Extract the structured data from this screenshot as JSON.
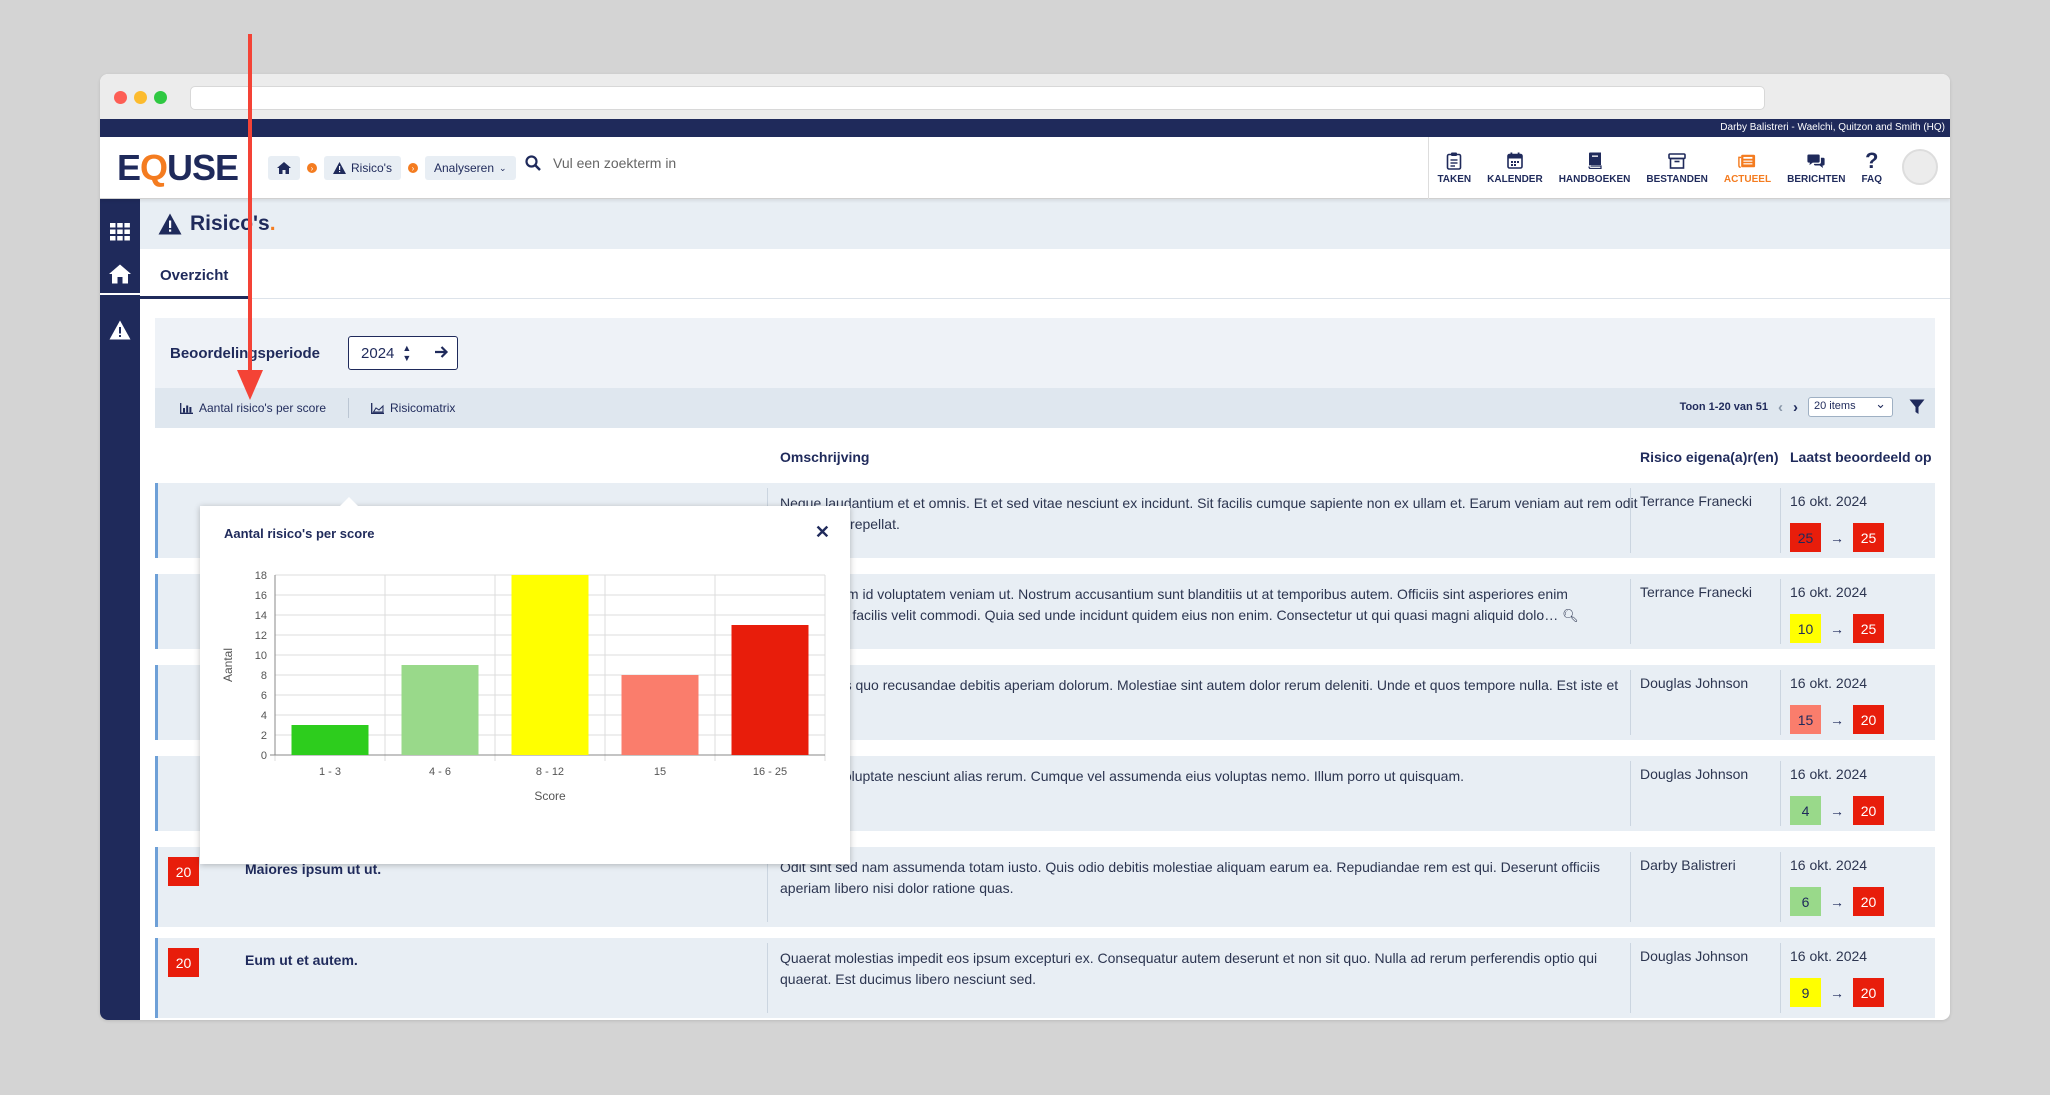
{
  "topstrip": {
    "org": "Darby Balistreri - Waelchi, Quitzon and Smith (HQ)"
  },
  "logo": {
    "text_a": "E",
    "text_q": "Q",
    "text_b": "USE"
  },
  "breadcrumb": {
    "risks": "Risico's",
    "analyse": "Analyseren"
  },
  "search": {
    "placeholder": "Vul een zoekterm in"
  },
  "nav": [
    {
      "label": "TAKEN",
      "icon": "clipboard-icon"
    },
    {
      "label": "KALENDER",
      "icon": "calendar-icon"
    },
    {
      "label": "HANDBOEKEN",
      "icon": "book-icon"
    },
    {
      "label": "BESTANDEN",
      "icon": "archive-icon"
    },
    {
      "label": "ACTUEEL",
      "icon": "news-icon"
    },
    {
      "label": "BERICHTEN",
      "icon": "messages-icon"
    },
    {
      "label": "FAQ",
      "icon": "question-icon"
    }
  ],
  "page": {
    "title": "Risico's",
    "title_dot": ".",
    "tab": "Overzicht"
  },
  "filter": {
    "label": "Beoordelingsperiode",
    "year": "2024"
  },
  "toolbar": {
    "chart_btn": "Aantal risico's per score",
    "matrix_btn": "Risicomatrix",
    "paging": "Toon 1-20 van 51",
    "per_page": "20 items"
  },
  "columns": {
    "description": "Omschrijving",
    "owner": "Risico eigena(a)r(en)",
    "last": "Laatst beoordeeld op"
  },
  "rows": [
    {
      "score": "",
      "title": "",
      "desc": "Neque laudantium et et omnis. Et et sed vitae nesciunt ex incidunt. Sit facilis cumque sapiente non ex ullam et. Earum veniam aut rem odit ad adipisci repellat.",
      "owner": "Terrance Franecki",
      "date": "16 okt. 2024",
      "from": "25",
      "from_color": "#e81d0b",
      "to": "25"
    },
    {
      "score": "",
      "title": "",
      "desc": "Sint nostrum id voluptatem veniam ut. Nostrum accusantium sunt blanditiis ut at temporibus autem. Officiis sint asperiores enim voluptatem facilis velit commodi. Quia sed unde incidunt quidem eius non enim. Consectetur ut qui quasi magni aliquid dolo…",
      "owner": "Terrance Franecki",
      "date": "16 okt. 2024",
      "from": "10",
      "from_color": "#ffff00",
      "to": "25"
    },
    {
      "score": "",
      "title": "",
      "desc": "Perferendis quo recusandae debitis aperiam dolorum. Molestiae sint autem dolor rerum deleniti. Unde et quos tempore nulla. Est iste et nostrum.",
      "owner": "Douglas Johnson",
      "date": "16 okt. 2024",
      "from": "15",
      "from_color": "#fa7d6c",
      "to": "20"
    },
    {
      "score": "",
      "title": "",
      "desc": "Quo odit voluptate nesciunt alias rerum. Cumque vel assumenda eius voluptas nemo. Illum porro ut quisquam.",
      "owner": "Douglas Johnson",
      "date": "16 okt. 2024",
      "from": "4",
      "from_color": "#99d98a",
      "to": "20"
    },
    {
      "score": "20",
      "title": "Maiores ipsum ut ut.",
      "desc": "Odit sint sed nam assumenda totam iusto. Quis odio debitis molestiae aliquam earum ea. Repudiandae rem est qui. Deserunt officiis aperiam libero nisi dolor ratione quas.",
      "owner": "Darby Balistreri",
      "date": "16 okt. 2024",
      "from": "6",
      "from_color": "#99d98a",
      "to": "20"
    },
    {
      "score": "20",
      "title": "Eum ut et autem.",
      "desc": "Quaerat molestias impedit eos ipsum excepturi ex. Consequatur autem deserunt et non sit quo. Nulla ad rerum perferendis optio qui quaerat. Est ducimus libero nesciunt sed.",
      "owner": "Douglas Johnson",
      "date": "16 okt. 2024",
      "from": "9",
      "from_color": "#ffff00",
      "to": "20"
    }
  ],
  "popup": {
    "title": "Aantal risico's per score"
  },
  "chart_data": {
    "type": "bar",
    "title": "Aantal risico's per score",
    "categories": [
      "1 - 3",
      "4 - 6",
      "8 - 12",
      "15",
      "16 - 25"
    ],
    "values": [
      3,
      9,
      18,
      8,
      13
    ],
    "colors": [
      "#2dcd1d",
      "#99d98a",
      "#ffff00",
      "#fa7d6c",
      "#e81d0b"
    ],
    "xlabel": "Score",
    "ylabel": "Aantal",
    "ylim": [
      0,
      18
    ],
    "yticks": [
      0,
      2,
      4,
      6,
      8,
      10,
      12,
      14,
      16,
      18
    ],
    "grid": true
  },
  "colors": {
    "navy": "#1f2a5b",
    "accent": "#f47c20",
    "annotation": "#f44336"
  }
}
